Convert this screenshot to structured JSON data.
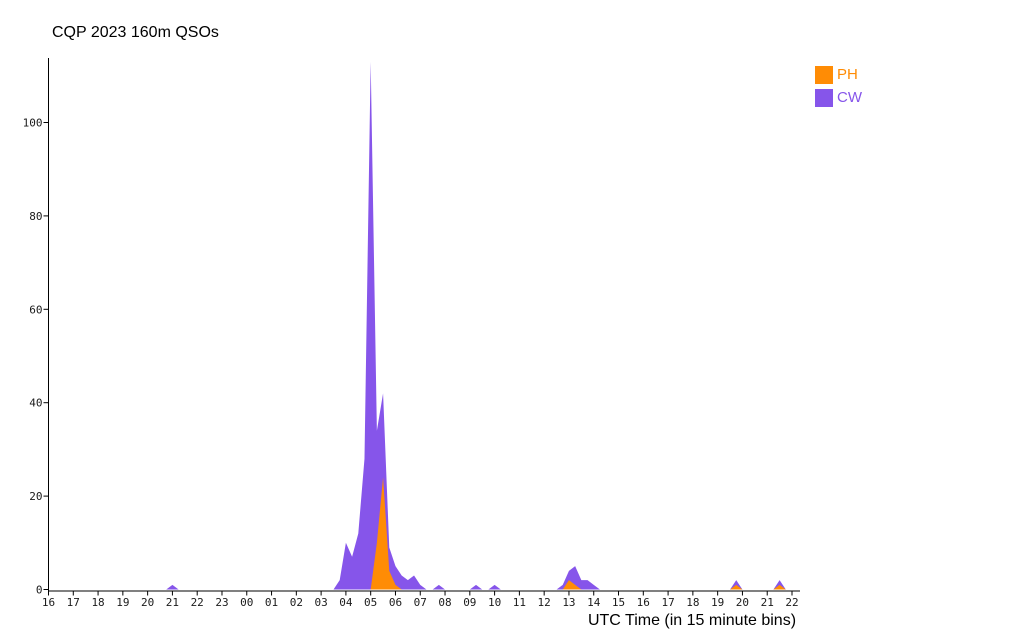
{
  "title": "CQP 2023 160m QSOs",
  "xaxis_label": "UTC Time (in 15 minute bins)",
  "legend": [
    {
      "label": "PH",
      "color": "#ff8c05"
    },
    {
      "label": "CW",
      "color": "#8655ea"
    }
  ],
  "chart_data": {
    "type": "area",
    "title": "CQP 2023 160m QSOs",
    "xlabel": "UTC Time (in 15 minute bins)",
    "ylabel": "",
    "yticks": [
      0,
      20,
      40,
      60,
      80,
      100
    ],
    "ylim": [
      0,
      113
    ],
    "grid": false,
    "legend_position": "top-right",
    "bin_minutes": 15,
    "x_start": "16:00 UTC",
    "x_span_hours": 30,
    "x_hour_ticks": [
      "16",
      "17",
      "18",
      "19",
      "20",
      "21",
      "22",
      "23",
      "00",
      "01",
      "02",
      "03",
      "04",
      "05",
      "06",
      "07",
      "08",
      "09",
      "10",
      "11",
      "12",
      "13",
      "14",
      "15",
      "16",
      "17",
      "18",
      "19",
      "20",
      "21",
      "22"
    ],
    "note": "points are [hours_after_16UTC, qso_count]; unlisted bins are 0; drawn CW behind, PH in front",
    "series": [
      {
        "name": "CW",
        "color": "#8655ea",
        "points": [
          [
            5.0,
            1
          ],
          [
            11.75,
            2
          ],
          [
            12.0,
            10
          ],
          [
            12.25,
            7
          ],
          [
            12.5,
            12
          ],
          [
            12.75,
            28
          ],
          [
            13.0,
            113
          ],
          [
            13.25,
            34
          ],
          [
            13.5,
            42
          ],
          [
            13.75,
            9
          ],
          [
            14.0,
            5
          ],
          [
            14.25,
            3
          ],
          [
            14.5,
            2
          ],
          [
            14.75,
            3
          ],
          [
            15.0,
            1
          ],
          [
            15.75,
            1
          ],
          [
            17.25,
            1
          ],
          [
            18.0,
            1
          ],
          [
            20.75,
            1
          ],
          [
            21.0,
            4
          ],
          [
            21.25,
            5
          ],
          [
            21.5,
            2
          ],
          [
            21.75,
            2
          ],
          [
            22.0,
            1
          ],
          [
            27.75,
            2
          ],
          [
            29.5,
            2
          ]
        ]
      },
      {
        "name": "PH",
        "color": "#ff8c05",
        "points": [
          [
            13.25,
            10
          ],
          [
            13.5,
            24
          ],
          [
            13.75,
            4
          ],
          [
            14.0,
            1
          ],
          [
            21.0,
            2
          ],
          [
            21.25,
            1
          ],
          [
            27.75,
            1
          ],
          [
            29.5,
            1
          ]
        ]
      }
    ]
  }
}
